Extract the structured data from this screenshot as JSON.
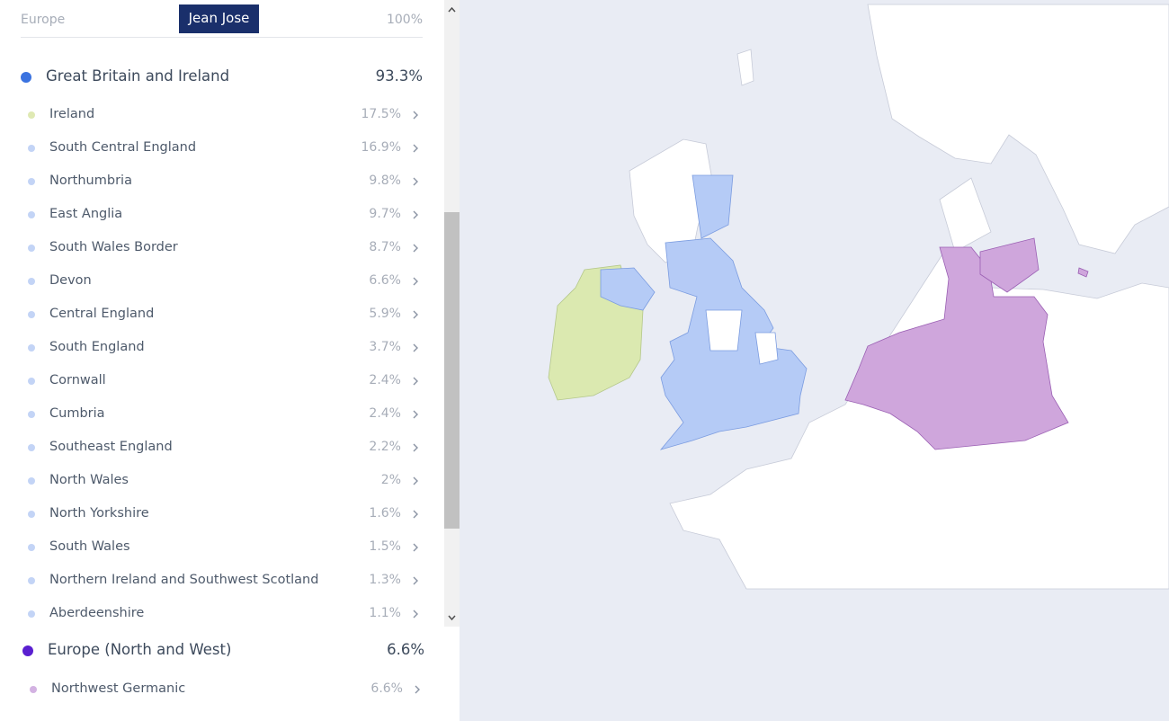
{
  "header": {
    "region": "Europe",
    "name": "Jean Jose",
    "total": "100%"
  },
  "groups": [
    {
      "name": "Great Britain and Ireland",
      "percent": "93.3%",
      "color": "#3b73e0",
      "items": [
        {
          "name": "Ireland",
          "percent": "17.5%",
          "color": "#dfe9b3"
        },
        {
          "name": "South Central England",
          "percent": "16.9%",
          "color": "#c3d4f6"
        },
        {
          "name": "Northumbria",
          "percent": "9.8%",
          "color": "#c3d4f6"
        },
        {
          "name": "East Anglia",
          "percent": "9.7%",
          "color": "#c3d4f6"
        },
        {
          "name": "South Wales Border",
          "percent": "8.7%",
          "color": "#c3d4f6"
        },
        {
          "name": "Devon",
          "percent": "6.6%",
          "color": "#c3d4f6"
        },
        {
          "name": "Central England",
          "percent": "5.9%",
          "color": "#c3d4f6"
        },
        {
          "name": "South England",
          "percent": "3.7%",
          "color": "#c3d4f6"
        },
        {
          "name": "Cornwall",
          "percent": "2.4%",
          "color": "#c3d4f6"
        },
        {
          "name": "Cumbria",
          "percent": "2.4%",
          "color": "#c3d4f6"
        },
        {
          "name": "Southeast England",
          "percent": "2.2%",
          "color": "#c3d4f6"
        },
        {
          "name": "North Wales",
          "percent": "2%",
          "color": "#c3d4f6"
        },
        {
          "name": "North Yorkshire",
          "percent": "1.6%",
          "color": "#c3d4f6"
        },
        {
          "name": "South Wales",
          "percent": "1.5%",
          "color": "#c3d4f6"
        },
        {
          "name": "Northern Ireland and Southwest Scotland",
          "percent": "1.3%",
          "color": "#c3d4f6"
        },
        {
          "name": "Aberdeenshire",
          "percent": "1.1%",
          "color": "#c3d4f6"
        }
      ]
    },
    {
      "name": "Europe (North and West)",
      "percent": "6.6%",
      "color": "#5a1fd0",
      "items": [
        {
          "name": "Northwest Germanic",
          "percent": "6.6%",
          "color": "#d3b2e2"
        }
      ]
    }
  ]
}
